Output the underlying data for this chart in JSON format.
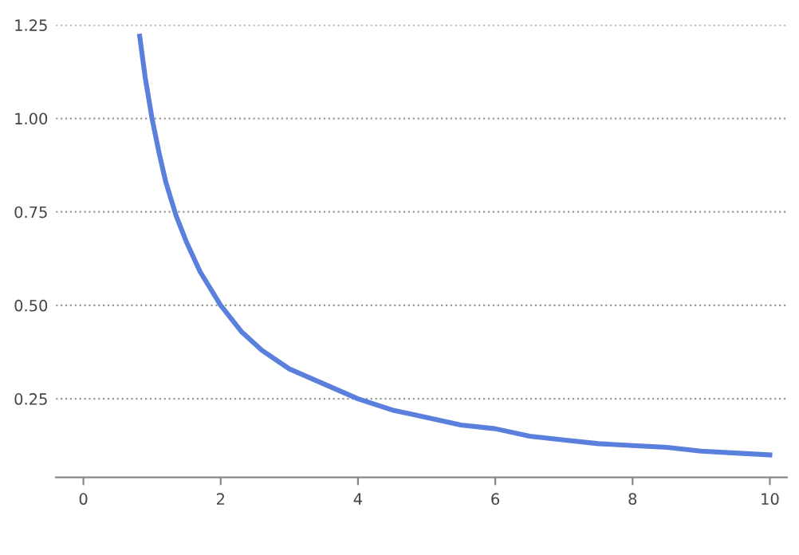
{
  "chart_data": {
    "type": "line",
    "x": [
      0.82,
      0.9,
      1.0,
      1.1,
      1.2,
      1.35,
      1.5,
      1.7,
      2.0,
      2.3,
      2.6,
      3.0,
      3.5,
      4.0,
      4.5,
      5.0,
      5.5,
      6.0,
      6.5,
      7.0,
      7.5,
      8.0,
      8.5,
      9.0,
      9.5,
      10.0
    ],
    "series": [
      {
        "color": "#5b7fdc",
        "values": [
          1.22,
          1.11,
          1.0,
          0.91,
          0.83,
          0.74,
          0.67,
          0.59,
          0.5,
          0.43,
          0.38,
          0.33,
          0.29,
          0.25,
          0.22,
          0.2,
          0.18,
          0.17,
          0.15,
          0.14,
          0.13,
          0.125,
          0.12,
          0.11,
          0.105,
          0.1
        ]
      }
    ],
    "xlim": [
      -0.4,
      10.25
    ],
    "ylim": [
      0.04,
      1.25
    ],
    "xticks": [
      0,
      2,
      4,
      6,
      8,
      10
    ],
    "yticks": [
      0.25,
      {
        "value": 0.5,
        "label": "0.50"
      },
      {
        "value": 0.75,
        "label": "0.75"
      },
      {
        "value": 1.0,
        "label": "1.00"
      },
      1.25
    ],
    "grid": "y",
    "marker": "none",
    "line_style": "solid"
  }
}
